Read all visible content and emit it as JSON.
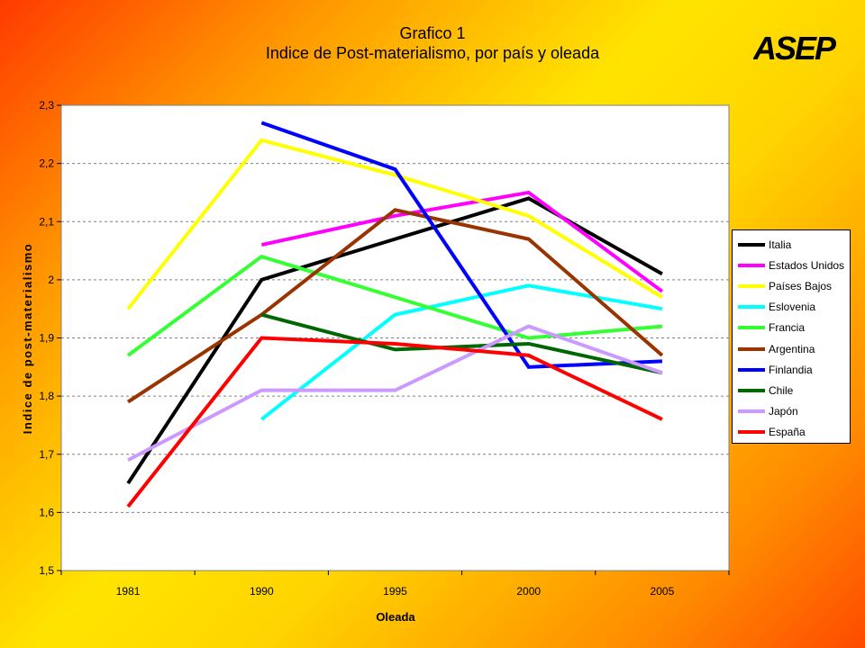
{
  "header": {
    "title_line1": "Grafico 1",
    "title_line2": "Indice de Post-materialismo, por país y oleada",
    "logo_text": "ASEP"
  },
  "chart_data": {
    "type": "line",
    "title": "Indice de Post-materialismo, por país y oleada",
    "xlabel": "Oleada",
    "ylabel": "Indice de post-materialismo",
    "categories": [
      "1981",
      "1990",
      "1995",
      "2000",
      "2005"
    ],
    "ylim": [
      1.5,
      2.3
    ],
    "yticks": [
      "1,5",
      "1,6",
      "1,7",
      "1,8",
      "1,9",
      "2",
      "2,1",
      "2,2",
      "2,3"
    ],
    "grid": "horizontal dashed",
    "legend_position": "right",
    "series": [
      {
        "name": "Italia",
        "color": "#000000",
        "values": [
          1.65,
          2.0,
          2.07,
          2.14,
          2.01
        ]
      },
      {
        "name": "Estados Unidos",
        "color": "#ff00ff",
        "values": [
          null,
          2.06,
          2.11,
          2.15,
          1.98
        ]
      },
      {
        "name": "Países Bajos",
        "color": "#ffff00",
        "values": [
          1.95,
          2.24,
          2.18,
          2.11,
          1.97
        ]
      },
      {
        "name": "Eslovenia",
        "color": "#00ffff",
        "values": [
          null,
          1.76,
          1.94,
          1.99,
          1.95
        ]
      },
      {
        "name": "Francia",
        "color": "#33ff33",
        "values": [
          1.87,
          2.04,
          1.97,
          1.9,
          1.92
        ]
      },
      {
        "name": "Argentina",
        "color": "#993300",
        "values": [
          1.79,
          1.94,
          2.12,
          2.07,
          1.87
        ]
      },
      {
        "name": "Finlandia",
        "color": "#0000ff",
        "values": [
          null,
          2.27,
          2.19,
          1.85,
          1.86
        ]
      },
      {
        "name": "Chile",
        "color": "#006600",
        "values": [
          null,
          1.94,
          1.88,
          1.89,
          1.84
        ]
      },
      {
        "name": "Japón",
        "color": "#cc99ff",
        "values": [
          1.69,
          1.81,
          1.81,
          1.92,
          1.84
        ]
      },
      {
        "name": "España",
        "color": "#ff0000",
        "values": [
          1.61,
          1.9,
          1.89,
          1.87,
          1.76
        ]
      }
    ]
  }
}
